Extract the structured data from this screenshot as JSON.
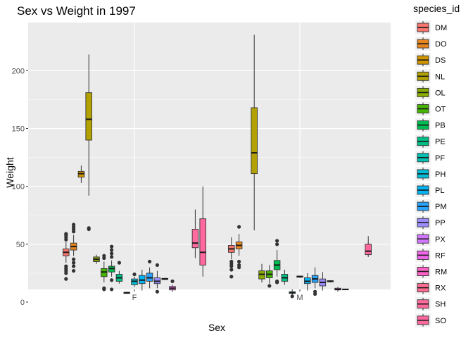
{
  "chart_data": {
    "type": "boxplot",
    "title": "Sex vs Weight in 1997",
    "xlabel": "Sex",
    "ylabel": "Weight",
    "categories": [
      "F",
      "M"
    ],
    "ylim": [
      -6,
      240
    ],
    "y_ticks": [
      0,
      50,
      100,
      150,
      200
    ],
    "grid": true,
    "legend": {
      "title": "species_id",
      "position": "right"
    },
    "series": [
      {
        "name": "DM",
        "color": "#F8766D",
        "boxes": [
          {
            "category": "F",
            "min": 34,
            "q1": 40,
            "median": 43,
            "q3": 46,
            "max": 52,
            "outliers": [
              20,
              25,
              27,
              29,
              31,
              54,
              56,
              58,
              59
            ]
          },
          {
            "category": "M",
            "min": 37,
            "q1": 43,
            "median": 46,
            "q3": 49,
            "max": 56,
            "outliers": [
              22,
              28,
              31,
              33,
              35
            ]
          }
        ]
      },
      {
        "name": "DO",
        "color": "#E7851E",
        "boxes": [
          {
            "category": "F",
            "min": 40,
            "q1": 45,
            "median": 48,
            "q3": 51,
            "max": 58,
            "outliers": [
              27,
              31,
              34,
              37,
              61,
              63,
              65,
              67
            ]
          },
          {
            "category": "M",
            "min": 40,
            "q1": 46,
            "median": 49,
            "q3": 52,
            "max": 59,
            "outliers": [
              30,
              32,
              35,
              65
            ]
          }
        ]
      },
      {
        "name": "DS",
        "color": "#D09400",
        "boxes": [
          {
            "category": "F",
            "min": 103,
            "q1": 108,
            "median": 111,
            "q3": 113,
            "max": 118,
            "outliers": []
          }
        ]
      },
      {
        "name": "NL",
        "color": "#B2A100",
        "boxes": [
          {
            "category": "F",
            "min": 92,
            "q1": 140,
            "median": 158,
            "q3": 181,
            "max": 214,
            "outliers": [
              63,
              64
            ]
          },
          {
            "category": "M",
            "min": 62,
            "q1": 111,
            "median": 129,
            "q3": 168,
            "max": 231,
            "outliers": []
          }
        ]
      },
      {
        "name": "OL",
        "color": "#89AC00",
        "boxes": [
          {
            "category": "F",
            "min": 33,
            "q1": 35,
            "median": 37,
            "q3": 39,
            "max": 41,
            "outliers": []
          },
          {
            "category": "M",
            "min": 17,
            "q1": 20,
            "median": 24,
            "q3": 27,
            "max": 33,
            "outliers": []
          }
        ]
      },
      {
        "name": "OT",
        "color": "#45B500",
        "boxes": [
          {
            "category": "F",
            "min": 17,
            "q1": 22,
            "median": 26,
            "q3": 29,
            "max": 35,
            "outliers": [
              11,
              12,
              38,
              40
            ]
          },
          {
            "category": "M",
            "min": 16,
            "q1": 21,
            "median": 24,
            "q3": 27,
            "max": 32,
            "outliers": [
              14
            ]
          }
        ]
      },
      {
        "name": "PB",
        "color": "#00BC51",
        "boxes": [
          {
            "category": "F",
            "min": 22,
            "q1": 26,
            "median": 29,
            "q3": 31,
            "max": 36,
            "outliers": [
              11,
              19,
              39,
              42,
              45,
              48
            ]
          },
          {
            "category": "M",
            "min": 22,
            "q1": 28,
            "median": 32,
            "q3": 36,
            "max": 45,
            "outliers": [
              17,
              18,
              50,
              53
            ]
          }
        ]
      },
      {
        "name": "PE",
        "color": "#00C087",
        "boxes": [
          {
            "category": "F",
            "min": 16,
            "q1": 18,
            "median": 21,
            "q3": 24,
            "max": 27,
            "outliers": [
              34
            ]
          },
          {
            "category": "M",
            "min": 15,
            "q1": 18,
            "median": 21,
            "q3": 24,
            "max": 28,
            "outliers": []
          }
        ]
      },
      {
        "name": "PF",
        "color": "#00C0B2",
        "boxes": [
          {
            "category": "F",
            "min": 7,
            "q1": 7.5,
            "median": 8,
            "q3": 8.5,
            "max": 9,
            "outliers": []
          },
          {
            "category": "M",
            "min": 6,
            "q1": 7.5,
            "median": 8,
            "q3": 9,
            "max": 11,
            "outliers": [
              5
            ]
          }
        ]
      },
      {
        "name": "PH",
        "color": "#00BCD6",
        "boxes": [
          {
            "category": "F",
            "min": 13,
            "q1": 15,
            "median": 18,
            "q3": 20,
            "max": 22,
            "outliers": [
              24
            ]
          },
          {
            "category": "M",
            "min": 21,
            "q1": 21.5,
            "median": 22,
            "q3": 22.5,
            "max": 23,
            "outliers": []
          }
        ]
      },
      {
        "name": "PL",
        "color": "#00B3F2",
        "boxes": [
          {
            "category": "F",
            "min": 10,
            "q1": 16,
            "median": 19,
            "q3": 23,
            "max": 28,
            "outliers": []
          },
          {
            "category": "M",
            "min": 10,
            "q1": 16,
            "median": 18,
            "q3": 21,
            "max": 25,
            "outliers": []
          }
        ]
      },
      {
        "name": "PM",
        "color": "#29A3FF",
        "boxes": [
          {
            "category": "F",
            "min": 12,
            "q1": 18,
            "median": 21,
            "q3": 25,
            "max": 30,
            "outliers": [
              35
            ]
          },
          {
            "category": "M",
            "min": 12,
            "q1": 17,
            "median": 20,
            "q3": 23,
            "max": 30,
            "outliers": [
              7,
              9
            ]
          }
        ]
      },
      {
        "name": "PP",
        "color": "#9C8DFF",
        "boxes": [
          {
            "category": "F",
            "min": 12,
            "q1": 16,
            "median": 18,
            "q3": 21,
            "max": 27,
            "outliers": [
              9,
              32
            ]
          },
          {
            "category": "M",
            "min": 10,
            "q1": 14,
            "median": 17,
            "q3": 20,
            "max": 26,
            "outliers": []
          }
        ]
      },
      {
        "name": "PX",
        "color": "#D277FF",
        "boxes": [
          {
            "category": "F",
            "min": 19,
            "q1": 19.5,
            "median": 20,
            "q3": 20.5,
            "max": 21,
            "outliers": []
          },
          {
            "category": "M",
            "min": 17,
            "q1": 17.5,
            "median": 18,
            "q3": 18.5,
            "max": 19,
            "outliers": []
          }
        ]
      },
      {
        "name": "RF",
        "color": "#F166E8",
        "boxes": [
          {
            "category": "F",
            "min": 9,
            "q1": 10.5,
            "median": 12,
            "q3": 13.5,
            "max": 15,
            "outliers": [
              18
            ]
          },
          {
            "category": "M",
            "min": 9,
            "q1": 10.5,
            "median": 11,
            "q3": 12,
            "max": 13,
            "outliers": []
          }
        ]
      },
      {
        "name": "RM",
        "color": "#FF61C7",
        "boxes": [
          {
            "category": "M",
            "min": 10.5,
            "q1": 10.8,
            "median": 11,
            "q3": 11.2,
            "max": 11.5,
            "outliers": []
          }
        ]
      },
      {
        "name": "RX",
        "color": "#FF6C91",
        "boxes": []
      },
      {
        "name": "SH",
        "color": "#FF6B9F",
        "boxes": [
          {
            "category": "F",
            "min": 38,
            "q1": 47,
            "median": 51,
            "q3": 63,
            "max": 80,
            "outliers": []
          }
        ]
      },
      {
        "name": "SO",
        "color": "#FF689F",
        "boxes": [
          {
            "category": "F",
            "min": 22,
            "q1": 32,
            "median": 43,
            "q3": 72,
            "max": 100,
            "outliers": []
          },
          {
            "category": "M",
            "min": 39,
            "q1": 41,
            "median": 44,
            "q3": 50,
            "max": 57,
            "outliers": []
          }
        ]
      }
    ]
  }
}
